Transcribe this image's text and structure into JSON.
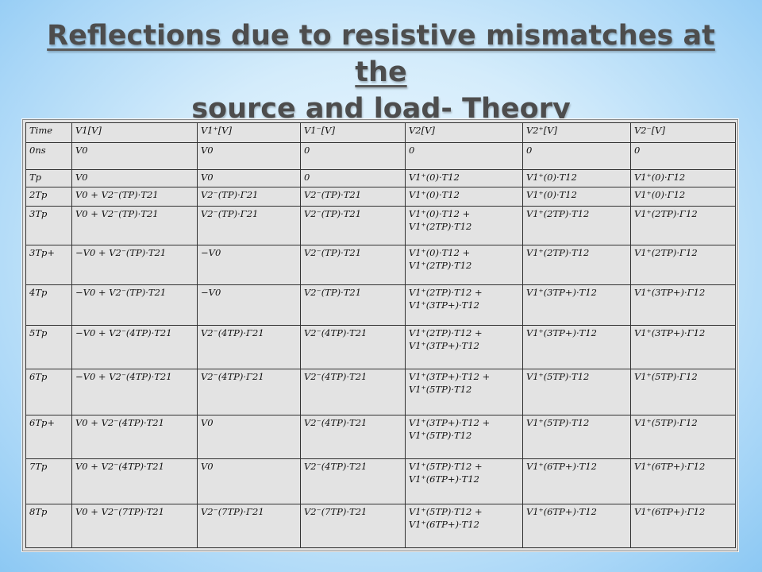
{
  "title": {
    "line1": "Reflections due to resistive mismatches at the",
    "line2": "source and load- Theory"
  },
  "table": {
    "headers": [
      "Time",
      "V1[V]",
      "V1⁺[V]",
      "V1⁻[V]",
      "V2[V]",
      "V2⁺[V]",
      "V2⁻[V]"
    ],
    "rows": [
      [
        "0ns",
        "V0",
        "V0",
        "0",
        "0",
        "0",
        "0"
      ],
      [
        "Tp",
        "V0",
        "V0",
        "0",
        "V1⁺(0)·T12",
        "V1⁺(0)·T12",
        "V1⁺(0)·Γ12"
      ],
      [
        "2Tp",
        "V0 + V2⁻(TP)·T21",
        "V2⁻(TP)·Γ21",
        "V2⁻(TP)·T21",
        "V1⁺(0)·T12",
        "V1⁺(0)·T12",
        "V1⁺(0)·Γ12"
      ],
      [
        "3Tp",
        "V0 + V2⁻(TP)·T21",
        "V2⁻(TP)·Γ21",
        "V2⁻(TP)·T21",
        "V1⁺(0)·T12 +\nV1⁺(2TP)·T12",
        "V1⁺(2TP)·T12",
        "V1⁺(2TP)·Γ12"
      ],
      [
        "3Tp+",
        "−V0 + V2⁻(TP)·T21",
        "−V0",
        "V2⁻(TP)·T21",
        "V1⁺(0)·T12 +\nV1⁺(2TP)·T12",
        "V1⁺(2TP)·T12",
        "V1⁺(2TP)·Γ12"
      ],
      [
        "4Tp",
        "−V0 + V2⁻(TP)·T21",
        "−V0",
        "V2⁻(TP)·T21",
        "V1⁺(2TP)·T12 +\nV1⁺(3TP+)·T12",
        "V1⁺(3TP+)·T12",
        "V1⁺(3TP+)·Γ12"
      ],
      [
        "5Tp",
        "−V0 + V2⁻(4TP)·T21",
        "V2⁻(4TP)·Γ21",
        "V2⁻(4TP)·T21",
        "V1⁺(2TP)·T12 +\nV1⁺(3TP+)·T12",
        "V1⁺(3TP+)·T12",
        "V1⁺(3TP+)·Γ12"
      ],
      [
        "6Tp",
        "−V0 + V2⁻(4TP)·T21",
        "V2⁻(4TP)·Γ21",
        "V2⁻(4TP)·T21",
        "V1⁺(3TP+)·T12 +\nV1⁺(5TP)·T12",
        "V1⁺(5TP)·T12",
        "V1⁺(5TP)·Γ12"
      ],
      [
        "6Tp+",
        "V0 + V2⁻(4TP)·T21",
        "V0",
        "V2⁻(4TP)·T21",
        "V1⁺(3TP+)·T12 +\nV1⁺(5TP)·T12",
        "V1⁺(5TP)·T12",
        "V1⁺(5TP)·Γ12"
      ],
      [
        "7Tp",
        "V0 + V2⁻(4TP)·T21",
        "V0",
        "V2⁻(4TP)·T21",
        "V1⁺(5TP)·T12 +\nV1⁺(6TP+)·T12",
        "V1⁺(6TP+)·T12",
        "V1⁺(6TP+)·Γ12"
      ],
      [
        "8Tp",
        "V0 + V2⁻(7TP)·T21",
        "V2⁻(7TP)·Γ21",
        "V2⁻(7TP)·T21",
        "V1⁺(5TP)·T12 +\nV1⁺(6TP+)·T12",
        "V1⁺(6TP+)·T12",
        "V1⁺(6TP+)·Γ12"
      ]
    ]
  }
}
